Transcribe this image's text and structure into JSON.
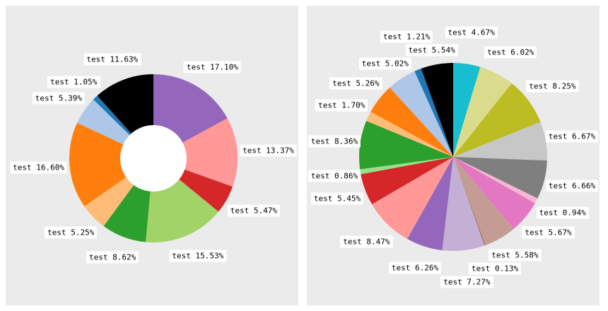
{
  "page": {
    "background": "#ffffff",
    "panel_background": "#ebebeb",
    "label_box_background": "#ffffff",
    "label_text_color": "#000000"
  },
  "chart_data": [
    {
      "type": "pie",
      "subtype": "donut",
      "title": "",
      "legend": "none",
      "direction": "clockwise",
      "start_angle_deg": 0,
      "inner_radius_ratio": 0.4,
      "hole_color": "#ffffff",
      "slices": [
        {
          "label": "test 17.10%",
          "value": 17.1,
          "color": "#9467bd"
        },
        {
          "label": "test 13.37%",
          "value": 13.37,
          "color": "#ff9896"
        },
        {
          "label": "test 5.47%",
          "value": 5.47,
          "color": "#d62728"
        },
        {
          "label": "test 15.53%",
          "value": 15.53,
          "color": "#a2d368"
        },
        {
          "label": "test 8.62%",
          "value": 8.62,
          "color": "#2ca02c"
        },
        {
          "label": "test 5.25%",
          "value": 5.25,
          "color": "#ffbb78"
        },
        {
          "label": "test 16.60%",
          "value": 16.6,
          "color": "#ff7f0e"
        },
        {
          "label": "test 5.39%",
          "value": 5.39,
          "color": "#aec7e8"
        },
        {
          "label": "test 1.05%",
          "value": 1.05,
          "color": "#1f77b4"
        },
        {
          "label": "test 11.63%",
          "value": 11.63,
          "color": "#000000"
        }
      ]
    },
    {
      "type": "pie",
      "subtype": "pie",
      "title": "",
      "legend": "none",
      "direction": "clockwise",
      "start_angle_deg": 0,
      "inner_radius_ratio": 0,
      "slices": [
        {
          "label": "test 4.67%",
          "value": 4.67,
          "color": "#17becf"
        },
        {
          "label": "test 6.02%",
          "value": 6.02,
          "color": "#dbdb8d"
        },
        {
          "label": "test 8.25%",
          "value": 8.25,
          "color": "#bcbd22"
        },
        {
          "label": "test 6.67%",
          "value": 6.67,
          "color": "#c7c7c7"
        },
        {
          "label": "test 6.66%",
          "value": 6.66,
          "color": "#7f7f7f"
        },
        {
          "label": "test 0.94%",
          "value": 0.94,
          "color": "#f7b6d2"
        },
        {
          "label": "test 5.67%",
          "value": 5.67,
          "color": "#e377c2"
        },
        {
          "label": "test 5.58%",
          "value": 5.58,
          "color": "#c49c94"
        },
        {
          "label": "test 0.13%",
          "value": 0.13,
          "color": "#8c564b"
        },
        {
          "label": "test 7.27%",
          "value": 7.27,
          "color": "#c5b0d5"
        },
        {
          "label": "test 6.26%",
          "value": 6.26,
          "color": "#9467bd"
        },
        {
          "label": "test 8.47%",
          "value": 8.47,
          "color": "#ff9896"
        },
        {
          "label": "test 5.45%",
          "value": 5.45,
          "color": "#d62728"
        },
        {
          "label": "test 0.86%",
          "value": 0.86,
          "color": "#98df8a"
        },
        {
          "label": "test 8.36%",
          "value": 8.36,
          "color": "#2ca02c"
        },
        {
          "label": "test 1.70%",
          "value": 1.7,
          "color": "#ffbb78"
        },
        {
          "label": "test 5.26%",
          "value": 5.26,
          "color": "#ff7f0e"
        },
        {
          "label": "test 5.02%",
          "value": 5.02,
          "color": "#aec7e8"
        },
        {
          "label": "test 1.21%",
          "value": 1.21,
          "color": "#1f77b4"
        },
        {
          "label": "test 5.54%",
          "value": 5.54,
          "color": "#000000"
        }
      ]
    }
  ]
}
